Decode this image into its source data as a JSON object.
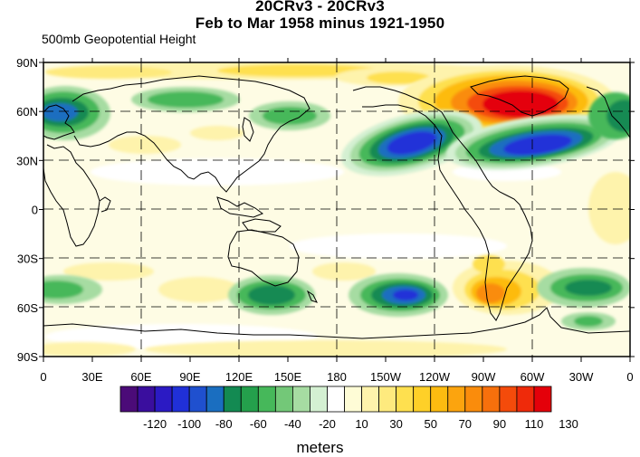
{
  "title_line1": "20CRv3 - 20CRv3",
  "title_line2": "Feb to Mar 1958 minus 1921-1950",
  "subtitle": "500mb Geopotential Height",
  "units": "meters",
  "lat_labels": [
    "90N",
    "60N",
    "30N",
    "0",
    "30S",
    "60S",
    "90S"
  ],
  "lon_labels": [
    "0",
    "30E",
    "60E",
    "90E",
    "120E",
    "150E",
    "180",
    "150W",
    "120W",
    "90W",
    "60W",
    "30W",
    "0"
  ],
  "colorbar": {
    "colors": [
      "#4b0b78",
      "#3a0e9e",
      "#2b1ac4",
      "#2030d8",
      "#1f50cf",
      "#1a6ec0",
      "#138a52",
      "#24a04c",
      "#46b85a",
      "#73c878",
      "#a6dca2",
      "#d4f0d2",
      "#ffffff",
      "#fefcd6",
      "#fef3ac",
      "#feea7e",
      "#fee04f",
      "#fed028",
      "#fdbb10",
      "#fca40e",
      "#fa8c0c",
      "#f7700c",
      "#f44b0b",
      "#ef2a0a",
      "#e4000a"
    ],
    "labels": [
      "-120",
      "-100",
      "-80",
      "-60",
      "-40",
      "-20",
      "10",
      "30",
      "50",
      "70",
      "90",
      "110",
      "130"
    ]
  }
}
